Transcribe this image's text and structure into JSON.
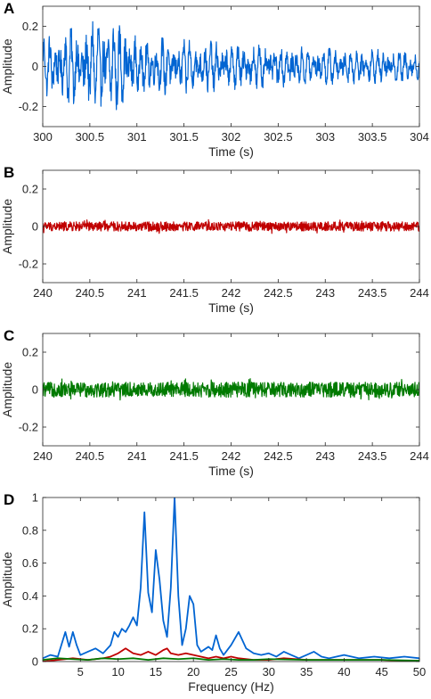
{
  "chart_data": [
    {
      "type": "line",
      "panel": "A",
      "xlabel": "Time (s)",
      "ylabel": "Amplitude",
      "xlim": [
        300,
        304
      ],
      "ylim": [
        -0.3,
        0.3
      ],
      "xticks": [
        "300",
        "300.5",
        "301",
        "301.5",
        "302",
        "302.5",
        "303",
        "303.5",
        "304"
      ],
      "yticks": [
        "-0.2",
        "0",
        "0.2"
      ],
      "grid": false,
      "series": [
        {
          "name": "",
          "color": "#0064d2",
          "signal": "noise",
          "amplitude_envelope": [
            [
              300,
              0.14
            ],
            [
              300.5,
              0.22
            ],
            [
              300.7,
              0.24
            ],
            [
              301,
              0.15
            ],
            [
              302,
              0.12
            ],
            [
              303,
              0.09
            ],
            [
              304,
              0.08
            ]
          ]
        }
      ]
    },
    {
      "type": "line",
      "panel": "B",
      "xlabel": "Time (s)",
      "ylabel": "Amplitude",
      "xlim": [
        240,
        244
      ],
      "ylim": [
        -0.3,
        0.3
      ],
      "xticks": [
        "240",
        "240.5",
        "241",
        "241.5",
        "242",
        "242.5",
        "243",
        "243.5",
        "244"
      ],
      "yticks": [
        "-0.2",
        "0",
        "0.2"
      ],
      "grid": false,
      "series": [
        {
          "name": "",
          "color": "#c00000",
          "signal": "noise",
          "amplitude_envelope": [
            [
              240,
              0.025
            ],
            [
              244,
              0.025
            ]
          ]
        }
      ]
    },
    {
      "type": "line",
      "panel": "C",
      "xlabel": "Time (s)",
      "ylabel": "Amplitude",
      "xlim": [
        240,
        244
      ],
      "ylim": [
        -0.3,
        0.3
      ],
      "xticks": [
        "240",
        "240.5",
        "241",
        "241.5",
        "242",
        "242.5",
        "243",
        "243.5",
        "244"
      ],
      "yticks": [
        "-0.2",
        "0",
        "0.2"
      ],
      "grid": false,
      "series": [
        {
          "name": "",
          "color": "#007a00",
          "signal": "noise",
          "amplitude_envelope": [
            [
              240,
              0.04
            ],
            [
              244,
              0.04
            ]
          ]
        }
      ]
    },
    {
      "type": "line",
      "panel": "D",
      "xlabel": "Frequency (Hz)",
      "ylabel": "Amplitude",
      "xlim": [
        0,
        50
      ],
      "ylim": [
        0,
        1
      ],
      "xticks": [
        "5",
        "10",
        "15",
        "20",
        "25",
        "30",
        "35",
        "40",
        "45",
        "50"
      ],
      "yticks": [
        "0",
        "0.2",
        "0.4",
        "0.6",
        "0.8",
        "1"
      ],
      "grid": false,
      "series": [
        {
          "name": "",
          "color": "#0064d2",
          "x": [
            0,
            1,
            2,
            3,
            3.5,
            4,
            4.5,
            5,
            6,
            7,
            8,
            9,
            9.5,
            10,
            10.5,
            11,
            11.5,
            12,
            12.5,
            13,
            13.5,
            14,
            14.5,
            15,
            15.5,
            16,
            16.5,
            17,
            17.5,
            18,
            18.5,
            19,
            19.5,
            20,
            20.5,
            21,
            22,
            22.5,
            23,
            23.5,
            24,
            25,
            26,
            27,
            28,
            29,
            30,
            31,
            32,
            33,
            34,
            35,
            36,
            37,
            38,
            40,
            42,
            44,
            46,
            48,
            50
          ],
          "values": [
            0.02,
            0.04,
            0.03,
            0.18,
            0.09,
            0.18,
            0.1,
            0.04,
            0.06,
            0.08,
            0.05,
            0.1,
            0.18,
            0.15,
            0.2,
            0.18,
            0.22,
            0.27,
            0.22,
            0.45,
            0.91,
            0.42,
            0.3,
            0.68,
            0.5,
            0.25,
            0.15,
            0.45,
            1.0,
            0.4,
            0.1,
            0.2,
            0.4,
            0.35,
            0.1,
            0.06,
            0.09,
            0.07,
            0.16,
            0.08,
            0.04,
            0.1,
            0.18,
            0.08,
            0.05,
            0.04,
            0.05,
            0.03,
            0.06,
            0.04,
            0.02,
            0.04,
            0.06,
            0.03,
            0.02,
            0.04,
            0.02,
            0.03,
            0.02,
            0.03,
            0.02
          ]
        },
        {
          "name": "",
          "color": "#c00000",
          "x": [
            0,
            2,
            4,
            6,
            8,
            9,
            10,
            11,
            12,
            13,
            13.5,
            14,
            15,
            16,
            16.5,
            17,
            18,
            19,
            20,
            21,
            22,
            23,
            24,
            25,
            26,
            28,
            30,
            32,
            35,
            40,
            45,
            50
          ],
          "values": [
            0.0,
            0.01,
            0.02,
            0.01,
            0.02,
            0.03,
            0.05,
            0.08,
            0.05,
            0.04,
            0.05,
            0.06,
            0.04,
            0.07,
            0.08,
            0.05,
            0.04,
            0.05,
            0.04,
            0.03,
            0.02,
            0.03,
            0.02,
            0.03,
            0.02,
            0.01,
            0.01,
            0.02,
            0.01,
            0.01,
            0.01,
            0.0
          ]
        },
        {
          "name": "",
          "color": "#007a00",
          "x": [
            0,
            2,
            4,
            6,
            8,
            10,
            12,
            14,
            16,
            18,
            20,
            22,
            24,
            26,
            28,
            30,
            35,
            40,
            45,
            50
          ],
          "values": [
            0.01,
            0.02,
            0.015,
            0.01,
            0.02,
            0.015,
            0.02,
            0.01,
            0.02,
            0.015,
            0.02,
            0.01,
            0.015,
            0.01,
            0.01,
            0.015,
            0.01,
            0.01,
            0.01,
            0.005
          ]
        }
      ]
    }
  ]
}
